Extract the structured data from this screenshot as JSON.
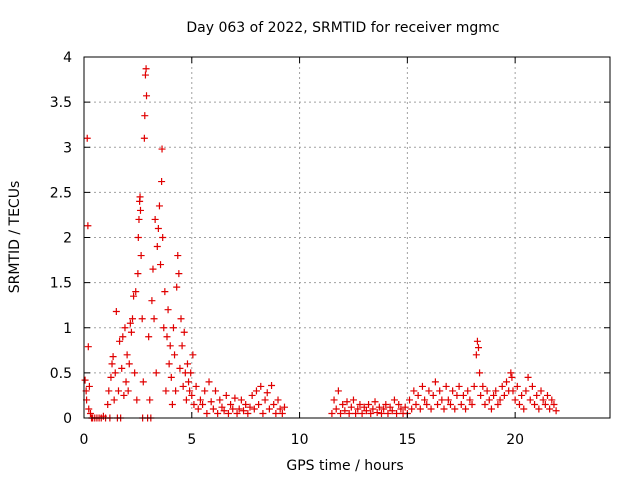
{
  "chart_data": {
    "type": "scatter",
    "title": "Day 063 of 2022, SRMTID for receiver mgmc",
    "xlabel": "GPS time / hours",
    "ylabel": "SRMTID / TECUs",
    "xlim": [
      0,
      24.4
    ],
    "ylim": [
      0,
      4
    ],
    "x_ticks": [
      0,
      5,
      10,
      15,
      20
    ],
    "x_tick_labels": [
      "0",
      "5",
      "10",
      "15",
      "20"
    ],
    "y_ticks": [
      0,
      0.5,
      1,
      1.5,
      2,
      2.5,
      3,
      3.5,
      4
    ],
    "y_tick_labels": [
      "0",
      "0.5",
      "1",
      "1.5",
      "2",
      "2.5",
      "3",
      "3.5",
      "4"
    ],
    "grid": true,
    "marker": "+",
    "color": "#e00000",
    "series": [
      {
        "name": "SRMTID",
        "points": [
          [
            0.05,
            0.42
          ],
          [
            0.1,
            0.3
          ],
          [
            0.12,
            0.2
          ],
          [
            0.15,
            3.1
          ],
          [
            0.18,
            2.13
          ],
          [
            0.2,
            0.79
          ],
          [
            0.22,
            0.1
          ],
          [
            0.25,
            0.35
          ],
          [
            0.3,
            0.05
          ],
          [
            0.35,
            0.0
          ],
          [
            0.4,
            0.0
          ],
          [
            0.5,
            0.0
          ],
          [
            0.6,
            0.0
          ],
          [
            0.7,
            0.0
          ],
          [
            0.8,
            0.0
          ],
          [
            0.9,
            0.02
          ],
          [
            1.0,
            0.0
          ],
          [
            1.1,
            0.15
          ],
          [
            1.15,
            0.3
          ],
          [
            1.2,
            0.0
          ],
          [
            1.25,
            0.45
          ],
          [
            1.3,
            0.6
          ],
          [
            1.35,
            0.68
          ],
          [
            1.4,
            0.2
          ],
          [
            1.45,
            0.5
          ],
          [
            1.5,
            1.18
          ],
          [
            1.55,
            0.0
          ],
          [
            1.6,
            0.3
          ],
          [
            1.65,
            0.85
          ],
          [
            1.7,
            0.0
          ],
          [
            1.75,
            0.55
          ],
          [
            1.8,
            0.9
          ],
          [
            1.85,
            0.25
          ],
          [
            1.9,
            1.0
          ],
          [
            1.95,
            0.4
          ],
          [
            2.0,
            0.7
          ],
          [
            2.05,
            0.3
          ],
          [
            2.1,
            0.6
          ],
          [
            2.15,
            1.05
          ],
          [
            2.2,
            0.95
          ],
          [
            2.25,
            1.1
          ],
          [
            2.3,
            1.35
          ],
          [
            2.35,
            0.5
          ],
          [
            2.4,
            1.4
          ],
          [
            2.45,
            0.2
          ],
          [
            2.5,
            1.6
          ],
          [
            2.52,
            2.0
          ],
          [
            2.55,
            2.2
          ],
          [
            2.58,
            2.4
          ],
          [
            2.6,
            2.45
          ],
          [
            2.62,
            2.3
          ],
          [
            2.65,
            1.8
          ],
          [
            2.7,
            1.1
          ],
          [
            2.72,
            0.0
          ],
          [
            2.75,
            0.4
          ],
          [
            2.8,
            3.1
          ],
          [
            2.82,
            3.35
          ],
          [
            2.85,
            3.8
          ],
          [
            2.88,
            3.87
          ],
          [
            2.9,
            3.57
          ],
          [
            2.95,
            0.0
          ],
          [
            3.0,
            0.9
          ],
          [
            3.05,
            0.2
          ],
          [
            3.1,
            0.0
          ],
          [
            3.15,
            1.3
          ],
          [
            3.2,
            1.65
          ],
          [
            3.25,
            1.1
          ],
          [
            3.3,
            2.2
          ],
          [
            3.35,
            0.5
          ],
          [
            3.4,
            1.9
          ],
          [
            3.45,
            2.1
          ],
          [
            3.5,
            2.35
          ],
          [
            3.55,
            1.7
          ],
          [
            3.6,
            2.62
          ],
          [
            3.62,
            2.98
          ],
          [
            3.65,
            2.0
          ],
          [
            3.7,
            1.0
          ],
          [
            3.75,
            1.4
          ],
          [
            3.8,
            0.3
          ],
          [
            3.85,
            0.9
          ],
          [
            3.9,
            1.2
          ],
          [
            3.95,
            0.6
          ],
          [
            4.0,
            0.8
          ],
          [
            4.05,
            0.45
          ],
          [
            4.1,
            0.15
          ],
          [
            4.15,
            1.0
          ],
          [
            4.2,
            0.7
          ],
          [
            4.25,
            0.3
          ],
          [
            4.3,
            1.45
          ],
          [
            4.35,
            1.8
          ],
          [
            4.4,
            1.6
          ],
          [
            4.45,
            0.55
          ],
          [
            4.5,
            1.1
          ],
          [
            4.55,
            0.8
          ],
          [
            4.6,
            0.35
          ],
          [
            4.65,
            0.95
          ],
          [
            4.7,
            0.5
          ],
          [
            4.75,
            0.2
          ],
          [
            4.8,
            0.6
          ],
          [
            4.85,
            0.4
          ],
          [
            4.9,
            0.3
          ],
          [
            4.95,
            0.5
          ],
          [
            5.0,
            0.25
          ],
          [
            5.05,
            0.7
          ],
          [
            5.1,
            0.15
          ],
          [
            5.2,
            0.35
          ],
          [
            5.3,
            0.1
          ],
          [
            5.4,
            0.2
          ],
          [
            5.5,
            0.15
          ],
          [
            5.6,
            0.3
          ],
          [
            5.7,
            0.05
          ],
          [
            5.8,
            0.4
          ],
          [
            5.9,
            0.18
          ],
          [
            6.0,
            0.1
          ],
          [
            6.1,
            0.3
          ],
          [
            6.2,
            0.05
          ],
          [
            6.3,
            0.2
          ],
          [
            6.4,
            0.12
          ],
          [
            6.5,
            0.08
          ],
          [
            6.6,
            0.25
          ],
          [
            6.7,
            0.05
          ],
          [
            6.8,
            0.15
          ],
          [
            6.9,
            0.1
          ],
          [
            7.0,
            0.22
          ],
          [
            7.1,
            0.05
          ],
          [
            7.2,
            0.1
          ],
          [
            7.3,
            0.2
          ],
          [
            7.4,
            0.08
          ],
          [
            7.5,
            0.15
          ],
          [
            7.6,
            0.05
          ],
          [
            7.7,
            0.12
          ],
          [
            7.8,
            0.25
          ],
          [
            7.9,
            0.1
          ],
          [
            8.0,
            0.3
          ],
          [
            8.1,
            0.15
          ],
          [
            8.2,
            0.35
          ],
          [
            8.3,
            0.05
          ],
          [
            8.4,
            0.2
          ],
          [
            8.5,
            0.28
          ],
          [
            8.6,
            0.1
          ],
          [
            8.7,
            0.36
          ],
          [
            8.8,
            0.15
          ],
          [
            8.9,
            0.05
          ],
          [
            9.0,
            0.2
          ],
          [
            9.1,
            0.1
          ],
          [
            9.2,
            0.05
          ],
          [
            9.3,
            0.12
          ],
          [
            11.5,
            0.05
          ],
          [
            11.6,
            0.2
          ],
          [
            11.7,
            0.1
          ],
          [
            11.8,
            0.3
          ],
          [
            11.9,
            0.05
          ],
          [
            12.0,
            0.15
          ],
          [
            12.1,
            0.08
          ],
          [
            12.2,
            0.18
          ],
          [
            12.3,
            0.05
          ],
          [
            12.4,
            0.12
          ],
          [
            12.5,
            0.2
          ],
          [
            12.6,
            0.05
          ],
          [
            12.7,
            0.1
          ],
          [
            12.8,
            0.15
          ],
          [
            12.9,
            0.05
          ],
          [
            13.0,
            0.12
          ],
          [
            13.1,
            0.08
          ],
          [
            13.2,
            0.15
          ],
          [
            13.3,
            0.05
          ],
          [
            13.4,
            0.1
          ],
          [
            13.5,
            0.18
          ],
          [
            13.6,
            0.06
          ],
          [
            13.7,
            0.12
          ],
          [
            13.8,
            0.05
          ],
          [
            13.9,
            0.1
          ],
          [
            14.0,
            0.15
          ],
          [
            14.1,
            0.05
          ],
          [
            14.2,
            0.12
          ],
          [
            14.3,
            0.08
          ],
          [
            14.4,
            0.2
          ],
          [
            14.5,
            0.05
          ],
          [
            14.6,
            0.15
          ],
          [
            14.7,
            0.1
          ],
          [
            14.8,
            0.05
          ],
          [
            14.9,
            0.12
          ],
          [
            15.0,
            0.05
          ],
          [
            15.1,
            0.2
          ],
          [
            15.2,
            0.1
          ],
          [
            15.3,
            0.3
          ],
          [
            15.4,
            0.15
          ],
          [
            15.5,
            0.25
          ],
          [
            15.6,
            0.1
          ],
          [
            15.7,
            0.35
          ],
          [
            15.8,
            0.2
          ],
          [
            15.9,
            0.15
          ],
          [
            16.0,
            0.3
          ],
          [
            16.1,
            0.1
          ],
          [
            16.2,
            0.25
          ],
          [
            16.3,
            0.4
          ],
          [
            16.4,
            0.15
          ],
          [
            16.5,
            0.3
          ],
          [
            16.6,
            0.2
          ],
          [
            16.7,
            0.1
          ],
          [
            16.8,
            0.35
          ],
          [
            16.9,
            0.2
          ],
          [
            17.0,
            0.15
          ],
          [
            17.1,
            0.3
          ],
          [
            17.2,
            0.1
          ],
          [
            17.3,
            0.25
          ],
          [
            17.4,
            0.35
          ],
          [
            17.5,
            0.15
          ],
          [
            17.6,
            0.25
          ],
          [
            17.7,
            0.1
          ],
          [
            17.8,
            0.3
          ],
          [
            17.9,
            0.2
          ],
          [
            18.0,
            0.15
          ],
          [
            18.1,
            0.35
          ],
          [
            18.2,
            0.7
          ],
          [
            18.25,
            0.85
          ],
          [
            18.3,
            0.78
          ],
          [
            18.35,
            0.5
          ],
          [
            18.4,
            0.25
          ],
          [
            18.5,
            0.35
          ],
          [
            18.6,
            0.15
          ],
          [
            18.7,
            0.3
          ],
          [
            18.8,
            0.2
          ],
          [
            18.9,
            0.1
          ],
          [
            19.0,
            0.25
          ],
          [
            19.1,
            0.3
          ],
          [
            19.2,
            0.15
          ],
          [
            19.3,
            0.2
          ],
          [
            19.4,
            0.35
          ],
          [
            19.5,
            0.25
          ],
          [
            19.6,
            0.4
          ],
          [
            19.7,
            0.3
          ],
          [
            19.8,
            0.5
          ],
          [
            19.85,
            0.45
          ],
          [
            19.9,
            0.3
          ],
          [
            20.0,
            0.2
          ],
          [
            20.1,
            0.35
          ],
          [
            20.2,
            0.15
          ],
          [
            20.3,
            0.25
          ],
          [
            20.4,
            0.1
          ],
          [
            20.5,
            0.3
          ],
          [
            20.6,
            0.45
          ],
          [
            20.7,
            0.2
          ],
          [
            20.8,
            0.35
          ],
          [
            20.9,
            0.15
          ],
          [
            21.0,
            0.25
          ],
          [
            21.1,
            0.1
          ],
          [
            21.2,
            0.3
          ],
          [
            21.3,
            0.2
          ],
          [
            21.4,
            0.15
          ],
          [
            21.5,
            0.25
          ],
          [
            21.6,
            0.1
          ],
          [
            21.7,
            0.2
          ],
          [
            21.8,
            0.15
          ],
          [
            21.9,
            0.08
          ]
        ]
      }
    ]
  }
}
